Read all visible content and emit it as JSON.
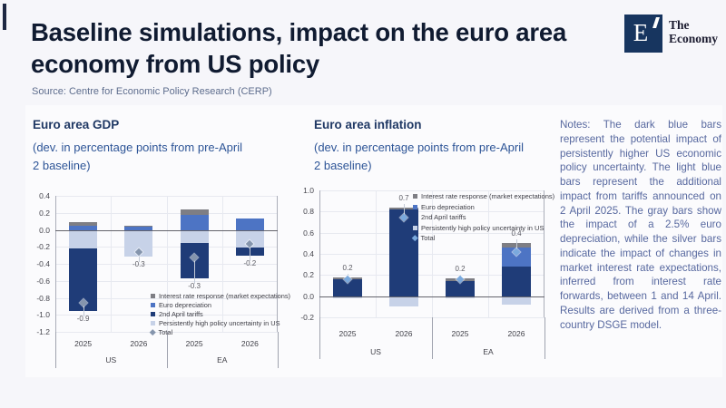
{
  "slide": {
    "title": "Baseline simulations, impact on the euro area economy from US policy",
    "source": "Source: Centre for Economic Policy Research (CERP)",
    "logo": {
      "letter": "E",
      "name_line1": "The",
      "name_line2": "Economy"
    },
    "notes": "Notes: The dark blue bars represent the potential impact of persistently higher US economic policy uncertainty. The light blue bars represent the additional impact from tariffs announced on 2 April 2025. The gray bars show the impact of a 2.5% euro depreciation, while the silver bars indicate the impact of changes in market interest rate expectations, inferred from interest rate forwards, between 1 and 14 April. Results are derived from a three-country DSGE model."
  },
  "colors": {
    "dark_blue": "#1f3c78",
    "medium_blue": "#4d74c4",
    "light_blue": "#c7d2e8",
    "gray": "#7e7e84",
    "total_gdp_marker": "#8595ad",
    "total_inflation_marker": "#7aa9dd",
    "accent_heading": "#1f3864",
    "accent_subtitle": "#2e5597"
  },
  "chart_data": [
    {
      "id": "gdp",
      "type": "bar",
      "title": "Euro area GDP",
      "subtitle": "(dev. in percentage points from pre-April 2 baseline)",
      "ylim": [
        -1.2,
        0.4
      ],
      "yticks": [
        "0.4",
        "0.2",
        "0.0",
        "-0.2",
        "-0.4",
        "-0.6",
        "-0.8",
        "-1.0",
        "-1.2"
      ],
      "groups": [
        "US",
        "EA"
      ],
      "categories": [
        "2025",
        "2026",
        "2025",
        "2026"
      ],
      "legend_position": "bottom-right",
      "series": [
        {
          "name": "Interest rate response (market expectations)",
          "key": "interest",
          "color": "#7e7e84",
          "values": [
            0.04,
            0.01,
            0.06,
            0
          ]
        },
        {
          "name": "Euro depreciation",
          "key": "euro",
          "color": "#4d74c4",
          "values": [
            0.05,
            0.04,
            0.18,
            0.13
          ]
        },
        {
          "name": "2nd April tariffs",
          "key": "tariffs",
          "color": "#1f3c78",
          "values": [
            -0.73,
            0,
            -0.42,
            -0.09
          ]
        },
        {
          "name": "Persistently high policy uncertainty in US",
          "key": "uncertainty",
          "color": "#c7d2e8",
          "values": [
            -0.22,
            -0.31,
            -0.15,
            -0.21
          ]
        }
      ],
      "total": {
        "name": "Total",
        "color": "#8595ad",
        "values": [
          -0.86,
          -0.26,
          -0.32,
          -0.17
        ],
        "labels": [
          "-0.9",
          "-0.3",
          "-0.3",
          "-0.2"
        ],
        "label_side": "below"
      }
    },
    {
      "id": "inflation",
      "type": "bar",
      "title": "Euro area inflation",
      "subtitle": "(dev. in percentage points from pre-April 2 baseline)",
      "ylim": [
        -0.2,
        1.0
      ],
      "yticks": [
        "1.0",
        "0.8",
        "0.6",
        "0.4",
        "0.2",
        "0.0",
        "-0.2"
      ],
      "groups": [
        "US",
        "EA"
      ],
      "categories": [
        "2025",
        "2026",
        "2025",
        "2026"
      ],
      "legend_position": "top-right",
      "series": [
        {
          "name": "Interest rate response (market expectations)",
          "key": "interest",
          "color": "#7e7e84",
          "values": [
            0.015,
            0.02,
            0.025,
            0.04
          ]
        },
        {
          "name": "Euro depreciation",
          "key": "euro",
          "color": "#4d74c4",
          "values": [
            0,
            0,
            0,
            0.18
          ]
        },
        {
          "name": "2nd April tariffs",
          "key": "tariffs",
          "color": "#1f3c78",
          "values": [
            0.16,
            0.82,
            0.145,
            0.28
          ]
        },
        {
          "name": "Persistently high policy uncertainty in US",
          "key": "uncertainty",
          "color": "#c7d2e8",
          "values": [
            -0.02,
            -0.1,
            -0.02,
            -0.08
          ]
        }
      ],
      "total": {
        "name": "Total",
        "color": "#7aa9dd",
        "values": [
          0.16,
          0.74,
          0.16,
          0.42
        ],
        "labels": [
          "0.2",
          "0.7",
          "0.2",
          "0.4"
        ],
        "label_side": "above"
      }
    }
  ]
}
